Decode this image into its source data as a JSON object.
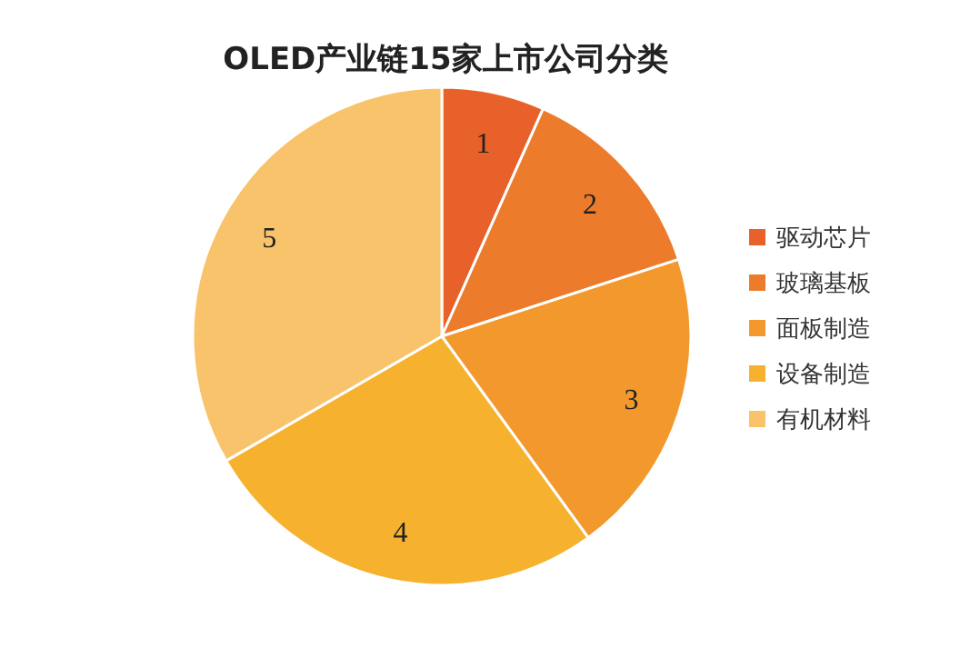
{
  "chart_data": {
    "type": "pie",
    "title": "OLED产业链15家上市公司分类",
    "categories": [
      "驱动芯片",
      "玻璃基板",
      "面板制造",
      "设备制造",
      "有机材料"
    ],
    "values": [
      1,
      2,
      3,
      4,
      5
    ],
    "colors": [
      "#e8602a",
      "#ec7b2c",
      "#f3982d",
      "#f6b12f",
      "#f8c36a"
    ],
    "data_labels": true,
    "legend": "right"
  }
}
